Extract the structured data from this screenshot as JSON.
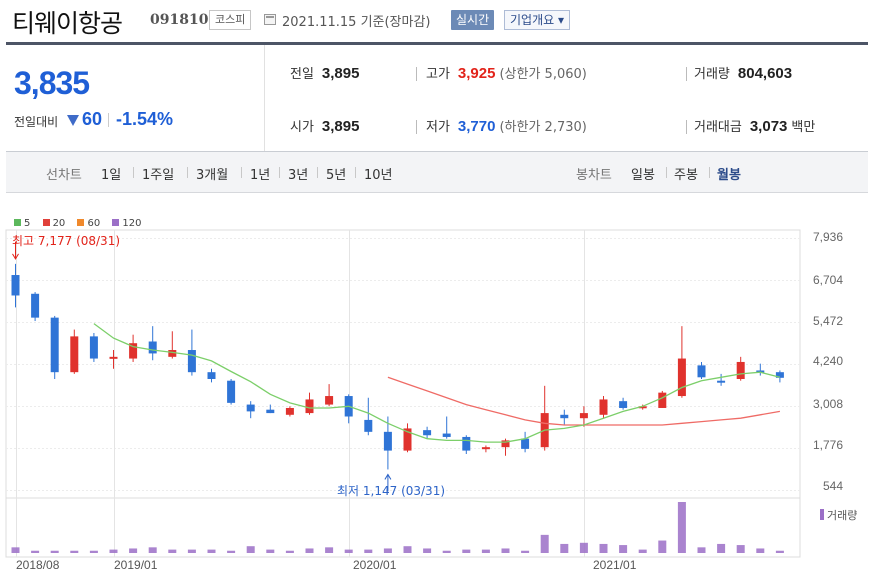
{
  "header": {
    "company_name": "티웨이항공",
    "stock_code": "091810",
    "market": "코스피",
    "date_text": "2021.11.15 기준(장마감)",
    "realtime_label": "실시간",
    "company_info_label": "기업개요 ▾",
    "calendar_icon": "calendar-icon"
  },
  "quote": {
    "price": "3,835",
    "prev_label": "전일대비",
    "change": "60",
    "change_rate": "-1.54%",
    "change_direction": "down",
    "cells": {
      "prev_close": {
        "label": "전일",
        "value": "3,895"
      },
      "open": {
        "label": "시가",
        "value": "3,895"
      },
      "high": {
        "label": "고가",
        "value": "3,925",
        "sub": "(상한가 5,060)"
      },
      "low": {
        "label": "저가",
        "value": "3,770",
        "sub": "(하한가 2,730)"
      },
      "volume": {
        "label": "거래량",
        "value": "804,603"
      },
      "amount": {
        "label": "거래대금",
        "value": "3,073",
        "unit": "백만"
      }
    },
    "colors": {
      "down": "#1f5fd6",
      "up": "#e2231a"
    }
  },
  "periods": {
    "line_label": "선차트",
    "line_items": [
      "1일",
      "1주일",
      "3개월",
      "1년",
      "3년",
      "5년",
      "10년"
    ],
    "candle_label": "봉차트",
    "candle_items": [
      "일봉",
      "주봉",
      "월봉"
    ],
    "active": "월봉"
  },
  "chart_data": {
    "type": "candlestick",
    "title": "",
    "legend": [
      {
        "name": "5",
        "color": "#5cb85c"
      },
      {
        "name": "20",
        "color": "#e0403a"
      },
      {
        "name": "60",
        "color": "#f0892c"
      },
      {
        "name": "120",
        "color": "#9b6fc7"
      }
    ],
    "y_ticks": [
      "7,936",
      "6,704",
      "5,472",
      "4,240",
      "3,008",
      "1,776",
      "544"
    ],
    "ylim": [
      544,
      7936
    ],
    "x_ticks": [
      "2018/08",
      "2019/01",
      "2020/01",
      "2021/01"
    ],
    "annotations": {
      "high": "최고 7,177 (08/31)",
      "low": "최저 1,147 (03/31)"
    },
    "volume_label": "거래량",
    "up_color": "#e0322d",
    "down_color": "#2f74d6",
    "ma5_color": "#7ccf6a",
    "ma20_color": "#ef6b66",
    "volume_color": "#9b6fc7",
    "candles": [
      {
        "date": "2018/08",
        "open": 6850,
        "high": 7177,
        "low": 5900,
        "close": 6250
      },
      {
        "date": "2018/09",
        "open": 6300,
        "high": 6350,
        "low": 5500,
        "close": 5600
      },
      {
        "date": "2018/10",
        "open": 5600,
        "high": 5650,
        "low": 3800,
        "close": 4000
      },
      {
        "date": "2018/11",
        "open": 4000,
        "high": 5250,
        "low": 3950,
        "close": 5050
      },
      {
        "date": "2018/12",
        "open": 5050,
        "high": 5150,
        "low": 4300,
        "close": 4400
      },
      {
        "date": "2019/01",
        "open": 4400,
        "high": 4650,
        "low": 4100,
        "close": 4450
      },
      {
        "date": "2019/02",
        "open": 4400,
        "high": 5100,
        "low": 4300,
        "close": 4850
      },
      {
        "date": "2019/03",
        "open": 4900,
        "high": 5350,
        "low": 4350,
        "close": 4550
      },
      {
        "date": "2019/04",
        "open": 4450,
        "high": 5200,
        "low": 4400,
        "close": 4650
      },
      {
        "date": "2019/05",
        "open": 4650,
        "high": 5250,
        "low": 3900,
        "close": 4000
      },
      {
        "date": "2019/06",
        "open": 4000,
        "high": 4100,
        "low": 3700,
        "close": 3800
      },
      {
        "date": "2019/07",
        "open": 3750,
        "high": 3800,
        "low": 3050,
        "close": 3100
      },
      {
        "date": "2019/08",
        "open": 3050,
        "high": 3150,
        "low": 2650,
        "close": 2850
      },
      {
        "date": "2019/09",
        "open": 2900,
        "high": 3050,
        "low": 2800,
        "close": 2800
      },
      {
        "date": "2019/10",
        "open": 2750,
        "high": 3000,
        "low": 2700,
        "close": 2950
      },
      {
        "date": "2019/11",
        "open": 2800,
        "high": 3400,
        "low": 2750,
        "close": 3200
      },
      {
        "date": "2019/12",
        "open": 3050,
        "high": 3650,
        "low": 3000,
        "close": 3300
      },
      {
        "date": "2020/01",
        "open": 3300,
        "high": 3350,
        "low": 2500,
        "close": 2700
      },
      {
        "date": "2020/02",
        "open": 2600,
        "high": 3250,
        "low": 2150,
        "close": 2250
      },
      {
        "date": "2020/03",
        "open": 2250,
        "high": 2700,
        "low": 1147,
        "close": 1700
      },
      {
        "date": "2020/04",
        "open": 1700,
        "high": 2500,
        "low": 1650,
        "close": 2350
      },
      {
        "date": "2020/05",
        "open": 2300,
        "high": 2400,
        "low": 2050,
        "close": 2150
      },
      {
        "date": "2020/06",
        "open": 2200,
        "high": 2700,
        "low": 2050,
        "close": 2100
      },
      {
        "date": "2020/07",
        "open": 2100,
        "high": 2150,
        "low": 1600,
        "close": 1700
      },
      {
        "date": "2020/08",
        "open": 1750,
        "high": 1850,
        "low": 1650,
        "close": 1800
      },
      {
        "date": "2020/09",
        "open": 1800,
        "high": 2050,
        "low": 1550,
        "close": 2000
      },
      {
        "date": "2020/10",
        "open": 2050,
        "high": 2250,
        "low": 1650,
        "close": 1750
      },
      {
        "date": "2020/11",
        "open": 1800,
        "high": 3600,
        "low": 1700,
        "close": 2800
      },
      {
        "date": "2020/12",
        "open": 2750,
        "high": 2900,
        "low": 2450,
        "close": 2650
      },
      {
        "date": "2021/01",
        "open": 2650,
        "high": 3000,
        "low": 2400,
        "close": 2800
      },
      {
        "date": "2021/02",
        "open": 2750,
        "high": 3300,
        "low": 2650,
        "close": 3200
      },
      {
        "date": "2021/03",
        "open": 3150,
        "high": 3250,
        "low": 2900,
        "close": 2950
      },
      {
        "date": "2021/04",
        "open": 2950,
        "high": 3050,
        "low": 2900,
        "close": 3000
      },
      {
        "date": "2021/05",
        "open": 2950,
        "high": 3450,
        "low": 2950,
        "close": 3400
      },
      {
        "date": "2021/06",
        "open": 3300,
        "high": 5350,
        "low": 3250,
        "close": 4400
      },
      {
        "date": "2021/07",
        "open": 4200,
        "high": 4300,
        "low": 3800,
        "close": 3850
      },
      {
        "date": "2021/08",
        "open": 3750,
        "high": 3950,
        "low": 3600,
        "close": 3700
      },
      {
        "date": "2021/09",
        "open": 3800,
        "high": 4450,
        "low": 3750,
        "close": 4300
      },
      {
        "date": "2021/10",
        "open": 4050,
        "high": 4250,
        "low": 3900,
        "close": 4000
      },
      {
        "date": "2021/11",
        "open": 4000,
        "high": 4050,
        "low": 3700,
        "close": 3835
      }
    ],
    "ma5": [
      null,
      null,
      null,
      null,
      5425,
      5000,
      4750,
      4650,
      4580,
      4500,
      4330,
      4020,
      3720,
      3350,
      3100,
      2950,
      2950,
      3000,
      2800,
      2500,
      2250,
      2050,
      2000,
      2000,
      1950,
      1950,
      2050,
      2300,
      2350,
      2450,
      2650,
      2850,
      3000,
      3250,
      3550,
      3750,
      3850,
      3950,
      4000,
      3850
    ],
    "ma20": [
      null,
      null,
      null,
      null,
      null,
      null,
      null,
      null,
      null,
      null,
      null,
      null,
      null,
      null,
      null,
      null,
      null,
      null,
      null,
      3850,
      3650,
      3450,
      3250,
      3050,
      2900,
      2750,
      2600,
      2500,
      2450,
      2450,
      2450,
      2450,
      2450,
      2450,
      2500,
      2550,
      2600,
      2650,
      2750,
      2850
    ],
    "volume": [
      5,
      2,
      2,
      2,
      2,
      3,
      4,
      5,
      3,
      3,
      3,
      2,
      6,
      3,
      2,
      4,
      5,
      3,
      3,
      4,
      6,
      4,
      2,
      3,
      3,
      4,
      2,
      16,
      8,
      9,
      8,
      7,
      3,
      11,
      45,
      5,
      8,
      7,
      4,
      2
    ]
  }
}
